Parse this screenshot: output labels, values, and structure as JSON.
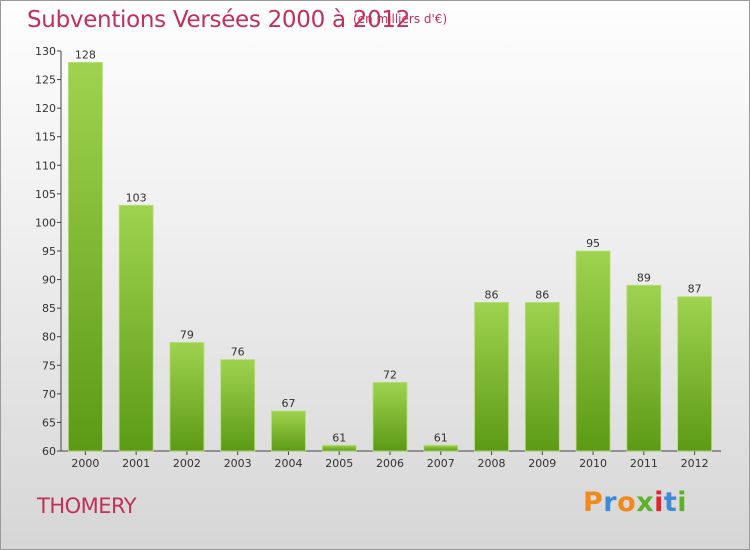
{
  "header": {
    "title": "Subventions Versées 2000 à 2012",
    "subtitle": "(en milliers d'€)"
  },
  "footer": {
    "city": "THOMERY",
    "logo": "Proxiti"
  },
  "colors": {
    "title": "#c0305a",
    "bar_top": "#9fd34f",
    "bar_bottom": "#5c9a16",
    "logo_letters": [
      "#f08a1c",
      "#3d8bd8",
      "#f08a1c",
      "#5fb02a",
      "#e0262a",
      "#3d8bd8",
      "#5fb02a"
    ]
  },
  "chart_data": {
    "type": "bar",
    "categories": [
      "2000",
      "2001",
      "2002",
      "2003",
      "2004",
      "2005",
      "2006",
      "2007",
      "2008",
      "2009",
      "2010",
      "2011",
      "2012"
    ],
    "values": [
      128,
      103,
      79,
      76,
      67,
      61,
      72,
      61,
      86,
      86,
      95,
      89,
      87
    ],
    "data_labels": [
      "128",
      "103",
      "79",
      "76",
      "67",
      "61",
      "72",
      "61",
      "86",
      "86",
      "95",
      "89",
      "87"
    ],
    "ylim": [
      60,
      130
    ],
    "yticks": [
      60,
      65,
      70,
      75,
      80,
      85,
      90,
      95,
      100,
      105,
      110,
      115,
      120,
      125,
      130
    ],
    "title": "Subventions Versées 2000 à 2012",
    "xlabel": "",
    "ylabel": "",
    "grid": false
  }
}
